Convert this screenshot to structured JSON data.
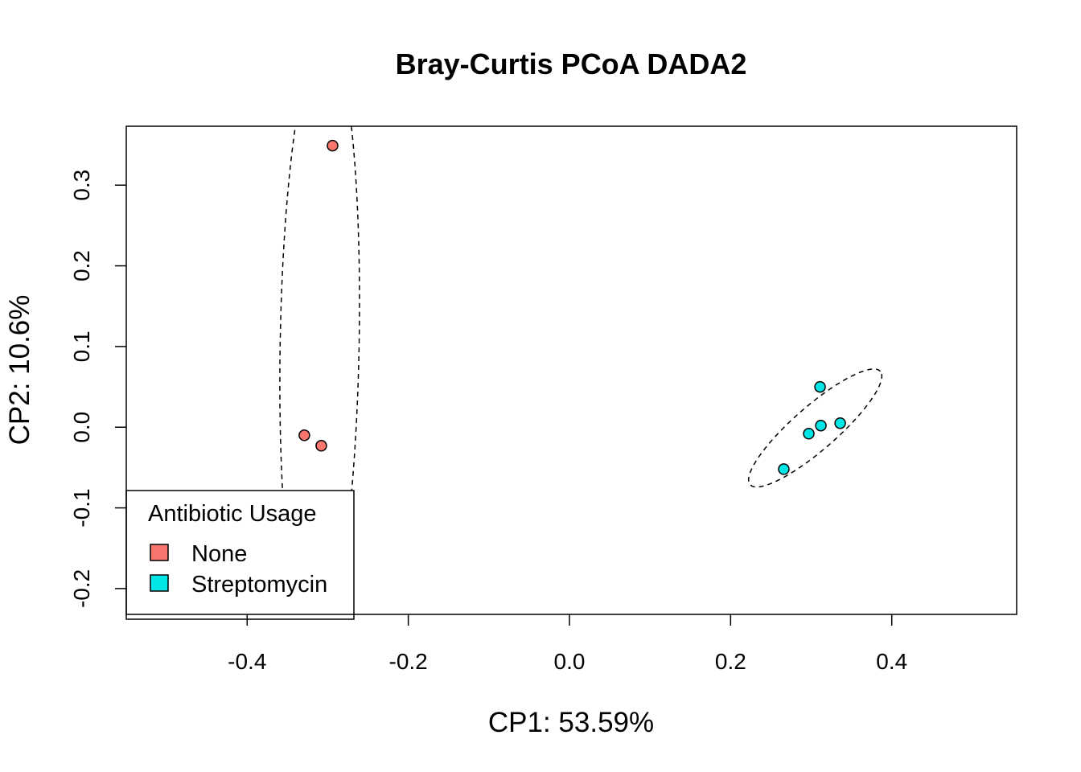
{
  "chart_data": {
    "type": "scatter",
    "title": "Bray-Curtis PCoA DADA2",
    "xlabel": "CP1: 53.59%",
    "ylabel": "CP2: 10.6%",
    "xlim": [
      -0.55,
      0.555
    ],
    "ylim": [
      -0.232,
      0.373
    ],
    "xticks": [
      -0.4,
      -0.2,
      0.0,
      0.2,
      0.4
    ],
    "xtick_labels": [
      "-0.4",
      "-0.2",
      "0.0",
      "0.2",
      "0.4"
    ],
    "yticks": [
      -0.2,
      -0.1,
      0.0,
      0.1,
      0.2,
      0.3
    ],
    "ytick_labels": [
      "-0.2",
      "-0.1",
      "0.0",
      "0.1",
      "0.2",
      "0.3"
    ],
    "grid": false,
    "legend": {
      "title": "Antibiotic Usage",
      "placement": "bottom-left"
    },
    "series": [
      {
        "name": "None",
        "color": "#f8766d",
        "points": [
          {
            "x": -0.294,
            "y": 0.349
          },
          {
            "x": -0.329,
            "y": -0.01
          },
          {
            "x": -0.308,
            "y": -0.023
          }
        ],
        "ellipse": {
          "center": [
            -0.31,
            0.105
          ],
          "semi_axes": [
            0.049,
            0.38
          ],
          "angle_deg": -1
        }
      },
      {
        "name": "Streptomycin",
        "color": "#00e5e5",
        "points": [
          {
            "x": 0.311,
            "y": 0.05
          },
          {
            "x": 0.312,
            "y": 0.002
          },
          {
            "x": 0.336,
            "y": 0.005
          },
          {
            "x": 0.297,
            "y": -0.008
          },
          {
            "x": 0.266,
            "y": -0.052
          }
        ],
        "ellipse": {
          "center": [
            0.305,
            -0.001
          ],
          "semi_axes": [
            0.107,
            0.027
          ],
          "angle_deg": 41
        }
      }
    ]
  }
}
